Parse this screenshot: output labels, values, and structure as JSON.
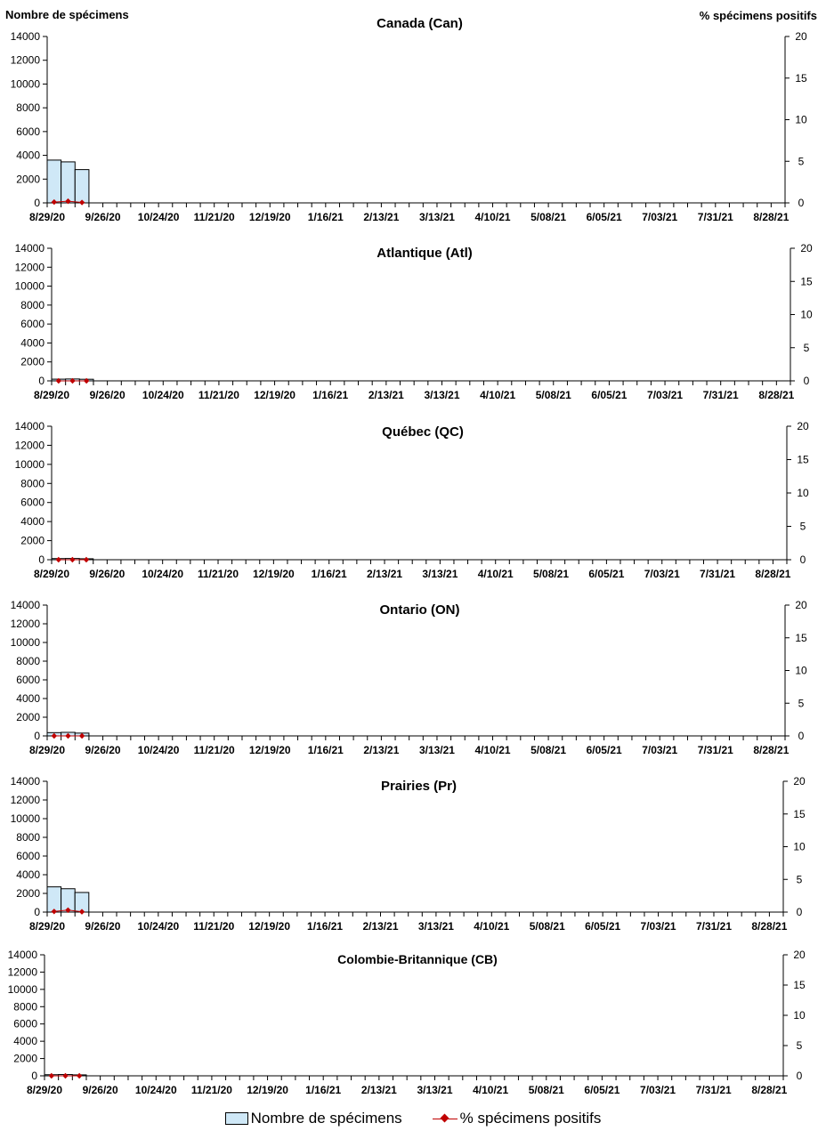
{
  "header": {
    "left_axis_title": "Nombre de spécimens",
    "right_axis_title": "% spécimens positifs"
  },
  "legend": {
    "bar_label": "Nombre de spécimens",
    "line_label": "% spécimens positifs"
  },
  "colors": {
    "bar_fill": "#cfe8f7",
    "bar_stroke": "#000000",
    "line": "#c00000"
  },
  "chart_data": [
    {
      "type": "bar+line",
      "title": "Canada (Can)",
      "x_tick_labels": [
        "8/29/20",
        "9/26/20",
        "10/24/20",
        "11/21/20",
        "12/19/20",
        "1/16/21",
        "2/13/21",
        "3/13/21",
        "4/10/21",
        "5/08/21",
        "6/05/21",
        "7/03/21",
        "7/31/21",
        "8/28/21"
      ],
      "weeks": 53,
      "ylim_left": [
        0,
        14000
      ],
      "yticks_left": [
        0,
        2000,
        4000,
        6000,
        8000,
        10000,
        12000,
        14000
      ],
      "ylim_right": [
        0,
        20
      ],
      "yticks_right": [
        0,
        5,
        10,
        15,
        20
      ],
      "series": [
        {
          "name": "Nombre de spécimens",
          "kind": "bar",
          "values": [
            3600,
            3450,
            2800
          ]
        },
        {
          "name": "% spécimens positifs",
          "kind": "line",
          "values": [
            0.1,
            0.2,
            0.05
          ]
        }
      ]
    },
    {
      "type": "bar+line",
      "title": "Atlantique (Atl)",
      "x_tick_labels": [
        "8/29/20",
        "9/26/20",
        "10/24/20",
        "11/21/20",
        "12/19/20",
        "1/16/21",
        "2/13/21",
        "3/13/21",
        "4/10/21",
        "5/08/21",
        "6/05/21",
        "7/03/21",
        "7/31/21",
        "8/28/21"
      ],
      "weeks": 53,
      "ylim_left": [
        0,
        14000
      ],
      "yticks_left": [
        0,
        2000,
        4000,
        6000,
        8000,
        10000,
        12000,
        14000
      ],
      "ylim_right": [
        0,
        20
      ],
      "yticks_right": [
        0,
        5,
        10,
        15,
        20
      ],
      "series": [
        {
          "name": "Nombre de spécimens",
          "kind": "bar",
          "values": [
            180,
            200,
            170
          ]
        },
        {
          "name": "% spécimens positifs",
          "kind": "line",
          "values": [
            0,
            0,
            0
          ]
        }
      ]
    },
    {
      "type": "bar+line",
      "title": "Québec (QC)",
      "x_tick_labels": [
        "8/29/20",
        "9/26/20",
        "10/24/20",
        "11/21/20",
        "12/19/20",
        "1/16/21",
        "2/13/21",
        "3/13/21",
        "4/10/21",
        "5/08/21",
        "6/05/21",
        "7/03/21",
        "7/31/21",
        "8/28/21"
      ],
      "weeks": 53,
      "ylim_left": [
        0,
        14000
      ],
      "yticks_left": [
        0,
        2000,
        4000,
        6000,
        8000,
        10000,
        12000,
        14000
      ],
      "ylim_right": [
        0,
        20
      ],
      "yticks_right": [
        0,
        5,
        10,
        15,
        20
      ],
      "series": [
        {
          "name": "Nombre de spécimens",
          "kind": "bar",
          "values": [
            120,
            130,
            100
          ]
        },
        {
          "name": "% spécimens positifs",
          "kind": "line",
          "values": [
            0,
            0,
            0
          ]
        }
      ]
    },
    {
      "type": "bar+line",
      "title": "Ontario (ON)",
      "x_tick_labels": [
        "8/29/20",
        "9/26/20",
        "10/24/20",
        "11/21/20",
        "12/19/20",
        "1/16/21",
        "2/13/21",
        "3/13/21",
        "4/10/21",
        "5/08/21",
        "6/05/21",
        "7/03/21",
        "7/31/21",
        "8/28/21"
      ],
      "weeks": 53,
      "ylim_left": [
        0,
        14000
      ],
      "yticks_left": [
        0,
        2000,
        4000,
        6000,
        8000,
        10000,
        12000,
        14000
      ],
      "ylim_right": [
        0,
        20
      ],
      "yticks_right": [
        0,
        5,
        10,
        15,
        20
      ],
      "series": [
        {
          "name": "Nombre de spécimens",
          "kind": "bar",
          "values": [
            350,
            380,
            300
          ]
        },
        {
          "name": "% spécimens positifs",
          "kind": "line",
          "values": [
            0,
            0,
            0
          ]
        }
      ]
    },
    {
      "type": "bar+line",
      "title": "Prairies (Pr)",
      "x_tick_labels": [
        "8/29/20",
        "9/26/20",
        "10/24/20",
        "11/21/20",
        "12/19/20",
        "1/16/21",
        "2/13/21",
        "3/13/21",
        "4/10/21",
        "5/08/21",
        "6/05/21",
        "7/03/21",
        "7/31/21",
        "8/28/21"
      ],
      "weeks": 53,
      "ylim_left": [
        0,
        14000
      ],
      "yticks_left": [
        0,
        2000,
        4000,
        6000,
        8000,
        10000,
        12000,
        14000
      ],
      "ylim_right": [
        0,
        20
      ],
      "yticks_right": [
        0,
        5,
        10,
        15,
        20
      ],
      "series": [
        {
          "name": "Nombre de spécimens",
          "kind": "bar",
          "values": [
            2700,
            2500,
            2100
          ]
        },
        {
          "name": "% spécimens positifs",
          "kind": "line",
          "values": [
            0.1,
            0.3,
            0.05
          ]
        }
      ]
    },
    {
      "type": "bar+line",
      "title": "Colombie-Britannique (CB)",
      "x_tick_labels": [
        "8/29/20",
        "9/26/20",
        "10/24/20",
        "11/21/20",
        "12/19/20",
        "1/16/21",
        "2/13/21",
        "3/13/21",
        "4/10/21",
        "5/08/21",
        "6/05/21",
        "7/03/21",
        "7/31/21",
        "8/28/21"
      ],
      "weeks": 53,
      "ylim_left": [
        0,
        14000
      ],
      "yticks_left": [
        0,
        2000,
        4000,
        6000,
        8000,
        10000,
        12000,
        14000
      ],
      "ylim_right": [
        0,
        20
      ],
      "yticks_right": [
        0,
        5,
        10,
        15,
        20
      ],
      "series": [
        {
          "name": "Nombre de spécimens",
          "kind": "bar",
          "values": [
            130,
            150,
            110
          ]
        },
        {
          "name": "% spécimens positifs",
          "kind": "line",
          "values": [
            0,
            0,
            0
          ]
        }
      ]
    }
  ]
}
